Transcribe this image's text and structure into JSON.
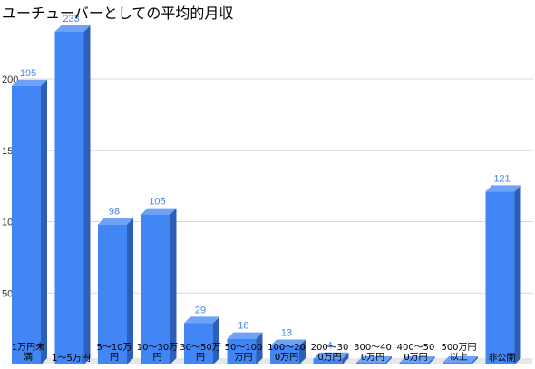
{
  "chart_data": {
    "type": "bar",
    "title": "ユーチューバーとしての平均的月収",
    "xlabel": "",
    "ylabel": "",
    "ylim": [
      0,
      233
    ],
    "yticks": [
      50,
      100,
      150,
      200
    ],
    "grid": true,
    "legend": "none",
    "bar_color": "#4285f4",
    "bar_side_color": "#2c5fb8",
    "bar_top_color": "#6ea2f7",
    "label_color": "#4a86e8",
    "categories": [
      [
        "1万円未",
        "満"
      ],
      [
        "1～5万円"
      ],
      [
        "5～10万",
        "円"
      ],
      [
        "10～30万",
        "円"
      ],
      [
        "30～50万",
        "円"
      ],
      [
        "50～100",
        "万円"
      ],
      [
        "100～20",
        "0万円"
      ],
      [
        "200～30",
        "0万円"
      ],
      [
        "300～40",
        "0万円"
      ],
      [
        "400～50",
        "0万円"
      ],
      [
        "500万円",
        "以上"
      ],
      [
        "非公開"
      ]
    ],
    "values": [
      195,
      233,
      98,
      105,
      29,
      18,
      13,
      4,
      1,
      1,
      1,
      121
    ],
    "data_labels": [
      "195",
      "233",
      "98",
      "105",
      "29",
      "18",
      "13",
      "4",
      "",
      "",
      "",
      "121"
    ]
  }
}
